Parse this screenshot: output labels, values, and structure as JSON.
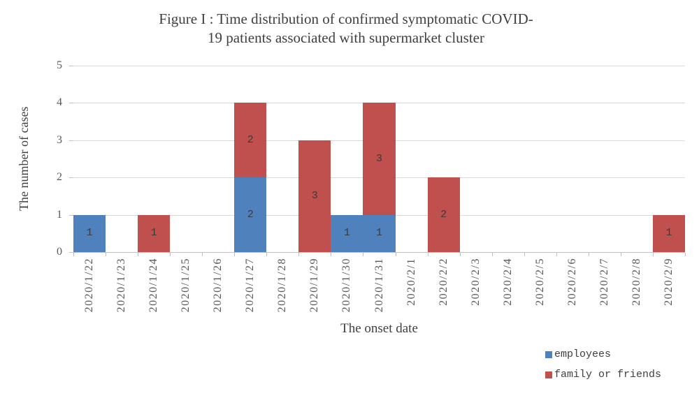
{
  "chart_data": {
    "type": "bar",
    "stacked": true,
    "title": "Figure I : Time distribution of confirmed symptomatic COVID-19 patients associated with supermarket cluster",
    "title_lines": [
      "Figure I : Time distribution of confirmed symptomatic COVID-",
      "19 patients associated with supermarket cluster"
    ],
    "xlabel": "The onset date",
    "ylabel": "The number of cases",
    "ylim": [
      0,
      5
    ],
    "yticks": [
      0,
      1,
      2,
      3,
      4,
      5
    ],
    "grid": true,
    "bar_gap": 0,
    "data_labels": true,
    "legend_position": "bottom-right",
    "categories": [
      "2020/1/22",
      "2020/1/23",
      "2020/1/24",
      "2020/1/25",
      "2020/1/26",
      "2020/1/27",
      "2020/1/28",
      "2020/1/29",
      "2020/1/30",
      "2020/1/31",
      "2020/2/1",
      "2020/2/2",
      "2020/2/3",
      "2020/2/4",
      "2020/2/5",
      "2020/2/6",
      "2020/2/7",
      "2020/2/8",
      "2020/2/9"
    ],
    "series": [
      {
        "name": "employees",
        "color": "#4F81BD",
        "values": [
          1,
          0,
          0,
          0,
          0,
          2,
          0,
          0,
          1,
          1,
          0,
          0,
          0,
          0,
          0,
          0,
          0,
          0,
          0
        ]
      },
      {
        "name": "family or friends",
        "color": "#C0504D",
        "values": [
          0,
          0,
          1,
          0,
          0,
          2,
          0,
          3,
          0,
          3,
          0,
          2,
          0,
          0,
          0,
          0,
          0,
          0,
          1
        ]
      }
    ]
  },
  "colors": {
    "employees": "#4F81BD",
    "family_or_friends": "#C0504D",
    "gridline": "#D9D9D9",
    "axis": "#BFBFBF",
    "tick_text": "#595959",
    "text": "#3F3F3F"
  }
}
